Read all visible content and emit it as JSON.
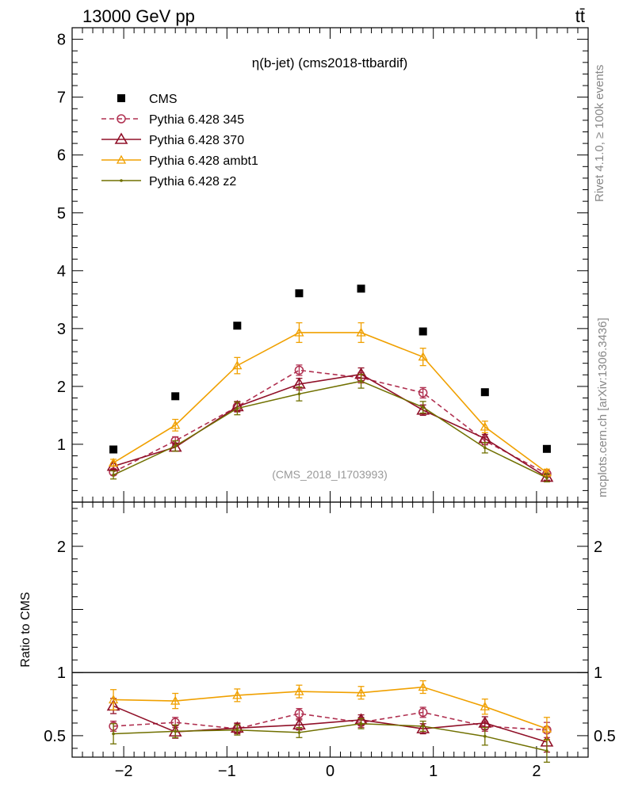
{
  "header": {
    "energy_label": "13000 GeV pp",
    "process_label": "tt̄"
  },
  "side_labels": {
    "rivet": "Rivet 4.1.0, ≥ 100k events",
    "mcplots": "mcplots.cern.ch [arXiv:1306.3436]"
  },
  "colors": {
    "cms": "#000000",
    "p345": "#b03050",
    "p370": "#901028",
    "ambt1": "#f0a000",
    "z2": "#707000"
  },
  "chart_data": [
    {
      "type": "scatter",
      "title": "η(b-jet) (cms2018-ttbardif)",
      "watermark": "(CMS_2018_I1703993)",
      "xlabel": "",
      "ylabel": "",
      "xlim": [
        -2.5,
        2.5
      ],
      "ylim": [
        0,
        8.2
      ],
      "x_ticks": [
        -2,
        -1,
        0,
        1,
        2
      ],
      "y_ticks": [
        1,
        2,
        3,
        4,
        5,
        6,
        7,
        8
      ],
      "y_tick_labels": [
        "1",
        "2",
        "3",
        "4",
        "5",
        "6",
        "7",
        "8"
      ],
      "x": [
        -2.1,
        -1.5,
        -0.9,
        -0.3,
        0.3,
        0.9,
        1.5,
        2.1
      ],
      "series": [
        {
          "key": "cms",
          "name": "CMS",
          "values": [
            0.91,
            1.83,
            3.05,
            3.61,
            3.69,
            2.95,
            1.9,
            0.92
          ],
          "errors": [
            0.02,
            0.03,
            0.04,
            0.04,
            0.04,
            0.04,
            0.03,
            0.02
          ]
        },
        {
          "key": "p345",
          "name": "Pythia 6.428 345",
          "values": [
            0.52,
            1.06,
            1.65,
            2.28,
            2.15,
            1.89,
            1.06,
            0.49
          ],
          "errors": [
            0.05,
            0.07,
            0.08,
            0.09,
            0.09,
            0.09,
            0.07,
            0.05
          ]
        },
        {
          "key": "p370",
          "name": "Pythia 6.428 370",
          "values": [
            0.62,
            0.95,
            1.65,
            2.04,
            2.21,
            1.59,
            1.1,
            0.43
          ],
          "errors": [
            0.05,
            0.07,
            0.09,
            0.1,
            0.11,
            0.09,
            0.07,
            0.05
          ]
        },
        {
          "key": "ambt1",
          "name": "Pythia 6.428 ambt1",
          "values": [
            0.68,
            1.33,
            2.36,
            2.93,
            2.93,
            2.51,
            1.3,
            0.51
          ],
          "errors": [
            0.06,
            0.1,
            0.14,
            0.17,
            0.17,
            0.15,
            0.1,
            0.06
          ]
        },
        {
          "key": "z2",
          "name": "Pythia 6.428 z2",
          "values": [
            0.47,
            0.97,
            1.62,
            1.87,
            2.09,
            1.64,
            0.94,
            0.42
          ],
          "errors": [
            0.07,
            0.09,
            0.11,
            0.12,
            0.12,
            0.1,
            0.09,
            0.07
          ]
        }
      ]
    },
    {
      "type": "line",
      "title": "",
      "xlabel": "",
      "ylabel": "Ratio to CMS",
      "xlim": [
        -2.5,
        2.5
      ],
      "ylim": [
        0.33,
        2.35
      ],
      "x_ticks": [
        -2,
        -1,
        0,
        1,
        2
      ],
      "x_tick_labels": [
        "−2",
        "−1",
        "0",
        "1",
        "2"
      ],
      "y_ticks": [
        0.5,
        1,
        2
      ],
      "y_tick_labels": [
        "0.5",
        "1",
        "2"
      ],
      "reference_line": 1,
      "x": [
        -2.1,
        -1.5,
        -0.9,
        -0.3,
        0.3,
        0.9,
        1.5,
        2.1
      ],
      "series": [
        {
          "key": "p345",
          "name": "Pythia 6.428 345",
          "values": [
            0.575,
            0.605,
            0.555,
            0.675,
            0.605,
            0.685,
            0.575,
            0.545
          ],
          "errors": [
            0.04,
            0.04,
            0.04,
            0.04,
            0.04,
            0.04,
            0.04,
            0.06
          ]
        },
        {
          "key": "p370",
          "name": "Pythia 6.428 370",
          "values": [
            0.735,
            0.53,
            0.56,
            0.585,
            0.625,
            0.555,
            0.6,
            0.45
          ],
          "errors": [
            0.06,
            0.05,
            0.04,
            0.04,
            0.04,
            0.04,
            0.05,
            0.08
          ]
        },
        {
          "key": "ambt1",
          "name": "Pythia 6.428 ambt1",
          "values": [
            0.785,
            0.775,
            0.82,
            0.85,
            0.84,
            0.885,
            0.73,
            0.555
          ],
          "errors": [
            0.08,
            0.06,
            0.05,
            0.05,
            0.05,
            0.05,
            0.06,
            0.09
          ]
        },
        {
          "key": "z2",
          "name": "Pythia 6.428 z2",
          "values": [
            0.515,
            0.535,
            0.545,
            0.525,
            0.595,
            0.575,
            0.495,
            0.38
          ],
          "errors": [
            0.08,
            0.05,
            0.04,
            0.04,
            0.04,
            0.04,
            0.07,
            0.09
          ]
        }
      ]
    }
  ]
}
